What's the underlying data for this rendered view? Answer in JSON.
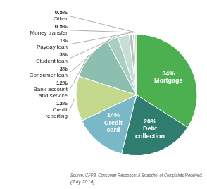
{
  "chart_data": {
    "type": "pie",
    "categories": [
      "Mortgage",
      "Debt\ncollection",
      "Credit\ncard",
      "Credit\nreporting",
      "Bank account\nand service",
      "Consumer loan",
      "Student loan",
      "Payday loan",
      "Money transfer",
      "Other"
    ],
    "values": [
      34,
      20,
      14,
      12,
      12,
      3,
      3,
      1,
      0.5,
      0.5
    ],
    "value_labels": [
      "34%",
      "20%",
      "14%",
      "12%",
      "12%",
      "3%",
      "3%",
      "1%",
      "0.5%",
      "0.5%"
    ],
    "colors": [
      "#4caf50",
      "#2e7d6e",
      "#7ab8c8",
      "#c5d98e",
      "#8cbfb0",
      "#a8cfc0",
      "#c8ddd6",
      "#b0c4bc",
      "#b5b5a5",
      "#d4cfc0"
    ],
    "data_labels": true,
    "annotations": [
      "Source: CFPB, Consumer Response: A Snapshot of Complaints Received.\n(July 2014)"
    ]
  }
}
